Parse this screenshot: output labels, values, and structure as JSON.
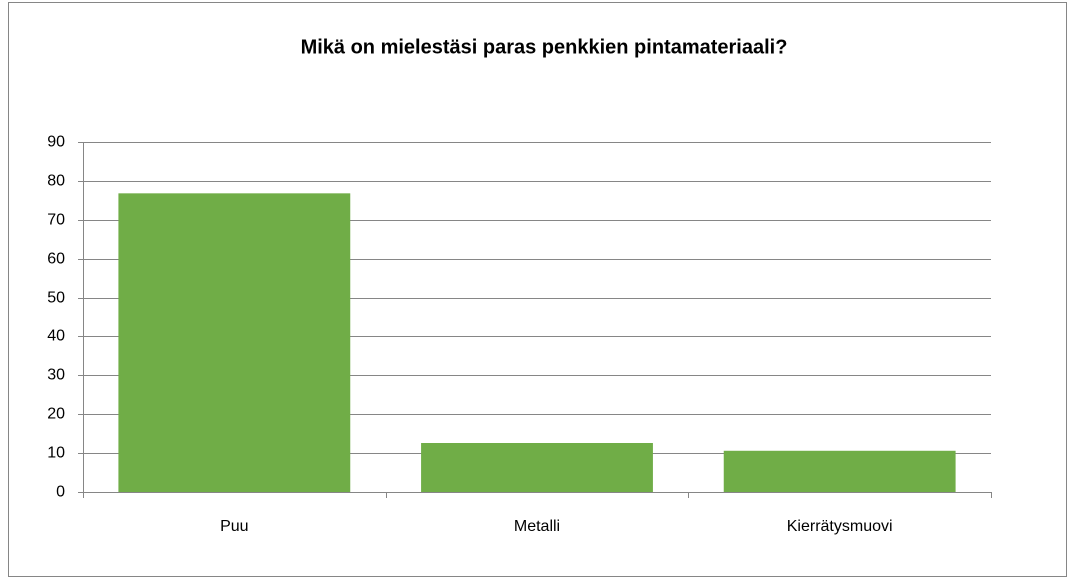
{
  "chart_data": {
    "type": "bar",
    "title": "Mikä on mielestäsi paras penkkien pintamateriaali?",
    "categories": [
      "Puu",
      "Metalli",
      "Kierrätysmuovi"
    ],
    "values": [
      76.8,
      12.6,
      10.6
    ],
    "color": "#70ad47",
    "ylim": [
      0,
      90
    ],
    "yticks": [
      0,
      10,
      20,
      30,
      40,
      50,
      60,
      70,
      80,
      90
    ],
    "grid": true
  }
}
